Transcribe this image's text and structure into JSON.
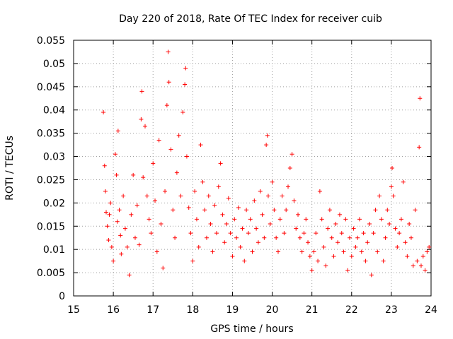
{
  "chart_data": {
    "type": "scatter",
    "title": "Day 220 of 2018, Rate Of TEC Index for receiver cuib",
    "xlabel": "GPS time / hours",
    "ylabel": "ROTI / TECUs",
    "xlim": [
      15,
      24
    ],
    "ylim": [
      0,
      0.055
    ],
    "xticks": [
      "15",
      "16",
      "17",
      "18",
      "19",
      "20",
      "21",
      "22",
      "23",
      "24"
    ],
    "yticks": [
      "0",
      "0.005",
      "0.01",
      "0.015",
      "0.02",
      "0.025",
      "0.03",
      "0.035",
      "0.04",
      "0.045",
      "0.05",
      "0.055"
    ],
    "grid": true,
    "marker": "plus",
    "color": "#ff0000",
    "series": [
      {
        "points": [
          [
            15.75,
            0.0395
          ],
          [
            15.78,
            0.028
          ],
          [
            15.8,
            0.0225
          ],
          [
            15.82,
            0.018
          ],
          [
            15.85,
            0.015
          ],
          [
            15.88,
            0.012
          ],
          [
            15.9,
            0.0175
          ],
          [
            15.93,
            0.02
          ],
          [
            15.96,
            0.0105
          ],
          [
            16.0,
            0.0075
          ],
          [
            16.05,
            0.0305
          ],
          [
            16.08,
            0.026
          ],
          [
            16.1,
            0.016
          ],
          [
            16.12,
            0.0355
          ],
          [
            16.15,
            0.0185
          ],
          [
            16.18,
            0.013
          ],
          [
            16.2,
            0.009
          ],
          [
            16.25,
            0.0215
          ],
          [
            16.3,
            0.0145
          ],
          [
            16.35,
            0.0105
          ],
          [
            16.4,
            0.0045
          ],
          [
            16.45,
            0.0175
          ],
          [
            16.5,
            0.026
          ],
          [
            16.55,
            0.0125
          ],
          [
            16.6,
            0.0195
          ],
          [
            16.65,
            0.011
          ],
          [
            16.7,
            0.038
          ],
          [
            16.72,
            0.044
          ],
          [
            16.75,
            0.0255
          ],
          [
            16.8,
            0.0365
          ],
          [
            16.85,
            0.0215
          ],
          [
            16.9,
            0.0165
          ],
          [
            16.95,
            0.0135
          ],
          [
            17.0,
            0.0285
          ],
          [
            17.05,
            0.0205
          ],
          [
            17.1,
            0.0095
          ],
          [
            17.15,
            0.0335
          ],
          [
            17.2,
            0.0155
          ],
          [
            17.25,
            0.006
          ],
          [
            17.3,
            0.0225
          ],
          [
            17.35,
            0.041
          ],
          [
            17.38,
            0.0525
          ],
          [
            17.4,
            0.046
          ],
          [
            17.45,
            0.0315
          ],
          [
            17.5,
            0.0185
          ],
          [
            17.55,
            0.0125
          ],
          [
            17.6,
            0.0265
          ],
          [
            17.65,
            0.0345
          ],
          [
            17.7,
            0.0215
          ],
          [
            17.75,
            0.0395
          ],
          [
            17.8,
            0.0455
          ],
          [
            17.82,
            0.049
          ],
          [
            17.85,
            0.03
          ],
          [
            17.9,
            0.019
          ],
          [
            17.95,
            0.0135
          ],
          [
            18.0,
            0.0075
          ],
          [
            18.05,
            0.0225
          ],
          [
            18.1,
            0.0165
          ],
          [
            18.15,
            0.0105
          ],
          [
            18.2,
            0.0325
          ],
          [
            18.25,
            0.0245
          ],
          [
            18.3,
            0.0185
          ],
          [
            18.35,
            0.0125
          ],
          [
            18.4,
            0.0215
          ],
          [
            18.45,
            0.0155
          ],
          [
            18.5,
            0.0095
          ],
          [
            18.55,
            0.0195
          ],
          [
            18.6,
            0.0135
          ],
          [
            18.65,
            0.0235
          ],
          [
            18.7,
            0.0285
          ],
          [
            18.75,
            0.0175
          ],
          [
            18.8,
            0.0115
          ],
          [
            18.85,
            0.0155
          ],
          [
            18.9,
            0.021
          ],
          [
            18.95,
            0.0135
          ],
          [
            19.0,
            0.0085
          ],
          [
            19.05,
            0.0165
          ],
          [
            19.1,
            0.0125
          ],
          [
            19.15,
            0.019
          ],
          [
            19.2,
            0.0105
          ],
          [
            19.25,
            0.0145
          ],
          [
            19.3,
            0.0075
          ],
          [
            19.35,
            0.0185
          ],
          [
            19.4,
            0.0135
          ],
          [
            19.45,
            0.0165
          ],
          [
            19.5,
            0.0095
          ],
          [
            19.55,
            0.0205
          ],
          [
            19.6,
            0.0145
          ],
          [
            19.65,
            0.0115
          ],
          [
            19.7,
            0.0225
          ],
          [
            19.75,
            0.0175
          ],
          [
            19.8,
            0.0125
          ],
          [
            19.85,
            0.0325
          ],
          [
            19.88,
            0.0345
          ],
          [
            19.9,
            0.0215
          ],
          [
            19.95,
            0.0155
          ],
          [
            20.0,
            0.0245
          ],
          [
            20.05,
            0.0185
          ],
          [
            20.1,
            0.0125
          ],
          [
            20.15,
            0.0095
          ],
          [
            20.2,
            0.0165
          ],
          [
            20.25,
            0.0215
          ],
          [
            20.3,
            0.0135
          ],
          [
            20.35,
            0.0185
          ],
          [
            20.4,
            0.0235
          ],
          [
            20.45,
            0.0275
          ],
          [
            20.5,
            0.0305
          ],
          [
            20.55,
            0.0205
          ],
          [
            20.6,
            0.0145
          ],
          [
            20.65,
            0.0175
          ],
          [
            20.7,
            0.0125
          ],
          [
            20.75,
            0.0095
          ],
          [
            20.8,
            0.0135
          ],
          [
            20.85,
            0.0165
          ],
          [
            20.9,
            0.0115
          ],
          [
            20.95,
            0.0085
          ],
          [
            21.0,
            0.0055
          ],
          [
            21.05,
            0.0095
          ],
          [
            21.1,
            0.0135
          ],
          [
            21.15,
            0.0075
          ],
          [
            21.2,
            0.0225
          ],
          [
            21.25,
            0.0165
          ],
          [
            21.3,
            0.0105
          ],
          [
            21.35,
            0.0065
          ],
          [
            21.4,
            0.0145
          ],
          [
            21.45,
            0.0185
          ],
          [
            21.5,
            0.0125
          ],
          [
            21.55,
            0.0085
          ],
          [
            21.6,
            0.0155
          ],
          [
            21.65,
            0.0115
          ],
          [
            21.7,
            0.0175
          ],
          [
            21.75,
            0.0135
          ],
          [
            21.8,
            0.0095
          ],
          [
            21.85,
            0.0165
          ],
          [
            21.9,
            0.0055
          ],
          [
            21.95,
            0.0125
          ],
          [
            22.0,
            0.0085
          ],
          [
            22.05,
            0.0145
          ],
          [
            22.1,
            0.0105
          ],
          [
            22.15,
            0.0125
          ],
          [
            22.2,
            0.0165
          ],
          [
            22.25,
            0.0095
          ],
          [
            22.3,
            0.0135
          ],
          [
            22.35,
            0.0075
          ],
          [
            22.4,
            0.0115
          ],
          [
            22.45,
            0.0155
          ],
          [
            22.5,
            0.0045
          ],
          [
            22.55,
            0.0135
          ],
          [
            22.6,
            0.0185
          ],
          [
            22.65,
            0.0095
          ],
          [
            22.7,
            0.0215
          ],
          [
            22.75,
            0.0165
          ],
          [
            22.8,
            0.0075
          ],
          [
            22.85,
            0.0125
          ],
          [
            22.9,
            0.0185
          ],
          [
            22.95,
            0.0155
          ],
          [
            23.0,
            0.0235
          ],
          [
            23.02,
            0.0275
          ],
          [
            23.05,
            0.0215
          ],
          [
            23.1,
            0.0145
          ],
          [
            23.15,
            0.0105
          ],
          [
            23.2,
            0.0135
          ],
          [
            23.25,
            0.0165
          ],
          [
            23.3,
            0.0245
          ],
          [
            23.35,
            0.0115
          ],
          [
            23.4,
            0.0085
          ],
          [
            23.45,
            0.0155
          ],
          [
            23.5,
            0.0125
          ],
          [
            23.55,
            0.0065
          ],
          [
            23.6,
            0.0185
          ],
          [
            23.65,
            0.0075
          ],
          [
            23.7,
            0.032
          ],
          [
            23.72,
            0.0425
          ],
          [
            23.75,
            0.0065
          ],
          [
            23.8,
            0.0085
          ],
          [
            23.85,
            0.0055
          ],
          [
            23.9,
            0.0095
          ],
          [
            23.95,
            0.0105
          ]
        ]
      }
    ]
  }
}
